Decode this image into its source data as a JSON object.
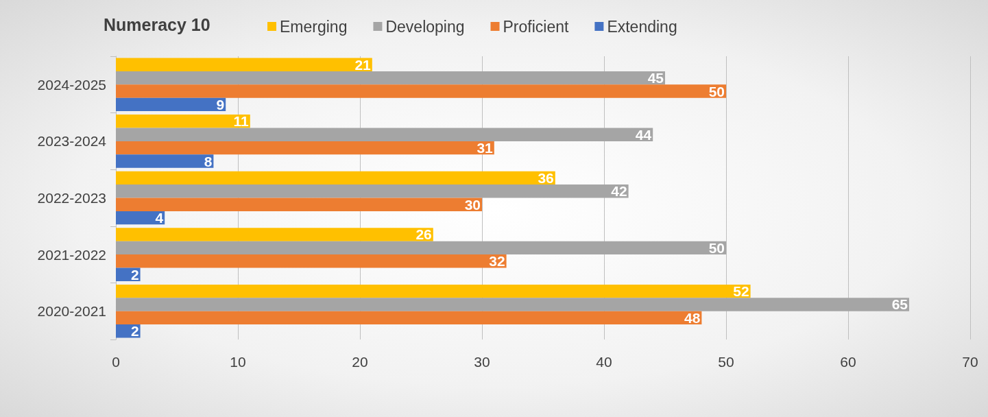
{
  "chart_data": {
    "type": "bar",
    "title": "Numeracy 10",
    "orientation": "horizontal",
    "categories": [
      "2024-2025",
      "2023-2024",
      "2022-2023",
      "2021-2022",
      "2020-2021"
    ],
    "series": [
      {
        "name": "Emerging",
        "color": "#ffc000",
        "values": [
          21,
          11,
          36,
          26,
          52
        ]
      },
      {
        "name": "Developing",
        "color": "#a5a5a5",
        "values": [
          45,
          44,
          42,
          50,
          65
        ]
      },
      {
        "name": "Proficient",
        "color": "#ed7d31",
        "values": [
          50,
          31,
          30,
          32,
          48
        ]
      },
      {
        "name": "Extending",
        "color": "#4472c4",
        "values": [
          9,
          8,
          4,
          2,
          2
        ]
      }
    ],
    "xlim": [
      0,
      70
    ],
    "xticks": [
      0,
      10,
      20,
      30,
      40,
      50,
      60,
      70
    ],
    "grid": "x",
    "legend": "top",
    "data_labels": true
  }
}
